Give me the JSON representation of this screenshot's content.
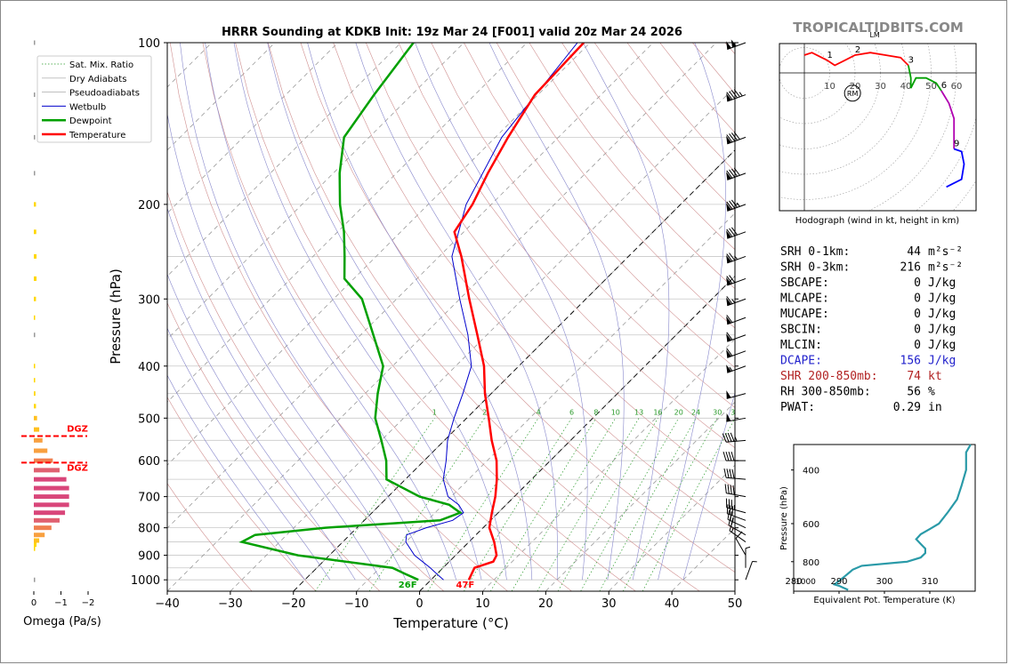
{
  "title": "HRRR Sounding at KDKB Init: 19z Mar 24 [F001] valid 20z Mar 24 2026",
  "watermark": "TROPICALTIDBITS.COM",
  "colors": {
    "temperature": "#ff0000",
    "dewpoint": "#00a000",
    "wetbulb": "#0000cc",
    "dcape": "#2222cc",
    "shear": "#b22222",
    "dgz": "#ff0000"
  },
  "chart_data": [
    {
      "name": "skew-t",
      "type": "line",
      "xlabel": "Temperature (°C)",
      "ylabel": "Pressure (hPa)",
      "xlim": [
        -40,
        50
      ],
      "ylim": [
        1050,
        100
      ],
      "y_scale": "log",
      "skew": "45-degree isotherms",
      "x_ticks": [
        "−40",
        "−30",
        "−20",
        "−10",
        "0",
        "10",
        "20",
        "30",
        "40",
        "50"
      ],
      "y_ticks": [
        "100",
        "200",
        "300",
        "400",
        "500",
        "600",
        "700",
        "800",
        "900",
        "1000"
      ],
      "legend": {
        "position": "upper-left",
        "entries": [
          "Sat. Mix. Ratio",
          "Dry Adiabats",
          "Pseudoadiabats",
          "Wetbulb",
          "Dewpoint",
          "Temperature"
        ]
      },
      "mix_ratio_labels": [
        "1",
        "2",
        "4",
        "6",
        "8",
        "10",
        "13",
        "16",
        "20",
        "24",
        "30",
        "36"
      ],
      "series": [
        {
          "name": "Temperature",
          "points": [
            [
              1000,
              6.0
            ],
            [
              975,
              5.5
            ],
            [
              950,
              5.0
            ],
            [
              925,
              7.0
            ],
            [
              900,
              6.5
            ],
            [
              850,
              4.0
            ],
            [
              800,
              1.0
            ],
            [
              750,
              -1.0
            ],
            [
              700,
              -3.0
            ],
            [
              650,
              -5.5
            ],
            [
              600,
              -8.5
            ],
            [
              550,
              -12.5
            ],
            [
              500,
              -16.5
            ],
            [
              450,
              -21.0
            ],
            [
              400,
              -25.5
            ],
            [
              350,
              -31.5
            ],
            [
              300,
              -38.5
            ],
            [
              250,
              -46.5
            ],
            [
              225,
              -51.5
            ],
            [
              200,
              -53.0
            ],
            [
              175,
              -55.5
            ],
            [
              150,
              -58.0
            ],
            [
              125,
              -60.5
            ],
            [
              100,
              -61.0
            ]
          ]
        },
        {
          "name": "Dewpoint",
          "points": [
            [
              1000,
              -2.0
            ],
            [
              975,
              -5.0
            ],
            [
              950,
              -8.0
            ],
            [
              900,
              -25.0
            ],
            [
              850,
              -36.0
            ],
            [
              825,
              -35.0
            ],
            [
              800,
              -25.0
            ],
            [
              775,
              -8.0
            ],
            [
              750,
              -6.0
            ],
            [
              725,
              -9.0
            ],
            [
              700,
              -15.0
            ],
            [
              650,
              -23.0
            ],
            [
              600,
              -26.0
            ],
            [
              550,
              -30.0
            ],
            [
              500,
              -34.5
            ],
            [
              450,
              -38.0
            ],
            [
              400,
              -41.5
            ],
            [
              350,
              -48.0
            ],
            [
              300,
              -55.5
            ],
            [
              275,
              -61.5
            ],
            [
              250,
              -65.0
            ],
            [
              225,
              -69.0
            ],
            [
              200,
              -74.0
            ],
            [
              175,
              -79.0
            ],
            [
              150,
              -84.0
            ],
            [
              125,
              -86.0
            ],
            [
              100,
              -88.0
            ]
          ]
        },
        {
          "name": "Wetbulb",
          "points": [
            [
              1000,
              2.0
            ],
            [
              975,
              0.0
            ],
            [
              950,
              -2.0
            ],
            [
              900,
              -6.5
            ],
            [
              850,
              -10.0
            ],
            [
              825,
              -11.0
            ],
            [
              800,
              -9.0
            ],
            [
              775,
              -6.0
            ],
            [
              750,
              -5.5
            ],
            [
              725,
              -7.5
            ],
            [
              700,
              -10.5
            ],
            [
              650,
              -14.0
            ],
            [
              600,
              -16.5
            ],
            [
              550,
              -19.5
            ],
            [
              500,
              -22.0
            ],
            [
              450,
              -24.5
            ],
            [
              400,
              -27.5
            ],
            [
              350,
              -33.0
            ],
            [
              300,
              -40.0
            ],
            [
              250,
              -48.0
            ],
            [
              200,
              -54.0
            ],
            [
              150,
              -59.0
            ],
            [
              100,
              -62.0
            ]
          ]
        }
      ],
      "annotations": [
        {
          "text": "26F",
          "series": "Dewpoint"
        },
        {
          "text": "47F",
          "series": "Temperature"
        }
      ]
    },
    {
      "name": "omega",
      "type": "bar",
      "xlabel": "Omega (Pa/s)",
      "xlim": [
        0,
        -2
      ],
      "x_ticks": [
        "0",
        "−1",
        "−2"
      ],
      "dgz_label": "DGZ",
      "dgz_layer_hpa": [
        540,
        605
      ],
      "bars": [
        {
          "p": 1000,
          "v": -0.03
        },
        {
          "p": 875,
          "v": -0.05
        },
        {
          "p": 860,
          "v": -0.1
        },
        {
          "p": 845,
          "v": -0.2
        },
        {
          "p": 825,
          "v": -0.4
        },
        {
          "p": 800,
          "v": -0.65
        },
        {
          "p": 775,
          "v": -0.95
        },
        {
          "p": 750,
          "v": -1.15
        },
        {
          "p": 725,
          "v": -1.3
        },
        {
          "p": 700,
          "v": -1.3
        },
        {
          "p": 675,
          "v": -1.3
        },
        {
          "p": 650,
          "v": -1.2
        },
        {
          "p": 625,
          "v": -0.95
        },
        {
          "p": 600,
          "v": -0.7
        },
        {
          "p": 575,
          "v": -0.5
        },
        {
          "p": 550,
          "v": -0.32
        },
        {
          "p": 525,
          "v": -0.2
        },
        {
          "p": 500,
          "v": -0.12
        },
        {
          "p": 475,
          "v": -0.08
        },
        {
          "p": 450,
          "v": -0.06
        },
        {
          "p": 425,
          "v": -0.05
        },
        {
          "p": 400,
          "v": -0.04
        },
        {
          "p": 350,
          "v": -0.02
        },
        {
          "p": 325,
          "v": -0.04
        },
        {
          "p": 300,
          "v": -0.08
        },
        {
          "p": 275,
          "v": -0.1
        },
        {
          "p": 250,
          "v": -0.1
        },
        {
          "p": 225,
          "v": -0.09
        },
        {
          "p": 200,
          "v": -0.08
        },
        {
          "p": 175,
          "v": -0.03
        },
        {
          "p": 150,
          "v": -0.02
        },
        {
          "p": 125,
          "v": -0.02
        },
        {
          "p": 100,
          "v": -0.02
        }
      ]
    },
    {
      "name": "hodograph",
      "type": "line",
      "xlabel": "Hodograph (wind in kt, height in km)",
      "ring_labels": [
        "10",
        "20",
        "30",
        "40",
        "50",
        "60"
      ],
      "markers": [
        "RM",
        "LM"
      ],
      "height_labels": [
        {
          "km": "1",
          "u": 9,
          "v": 5
        },
        {
          "km": "2",
          "u": 20,
          "v": 7
        },
        {
          "km": "3",
          "u": 41,
          "v": 3
        },
        {
          "km": "6",
          "u": 54,
          "v": -7
        },
        {
          "km": "9",
          "u": 59,
          "v": -30
        }
      ],
      "rm": {
        "u": 19,
        "v": -8
      },
      "lm": {
        "u": 28,
        "v": 15
      },
      "series": [
        {
          "color": "#ff0000",
          "points": [
            [
              0,
              7
            ],
            [
              3,
              8
            ],
            [
              9,
              5
            ],
            [
              12,
              3
            ],
            [
              16,
              5
            ],
            [
              20,
              7
            ],
            [
              26,
              8
            ],
            [
              32,
              7
            ],
            [
              38,
              6
            ],
            [
              41,
              3
            ]
          ]
        },
        {
          "color": "#00a000",
          "points": [
            [
              41,
              3
            ],
            [
              42,
              -2
            ],
            [
              42,
              -6
            ],
            [
              44,
              -2
            ],
            [
              48,
              -2
            ],
            [
              52,
              -4
            ],
            [
              54,
              -7
            ]
          ]
        },
        {
          "color": "#b000b0",
          "points": [
            [
              54,
              -7
            ],
            [
              57,
              -12
            ],
            [
              59,
              -18
            ],
            [
              59,
              -25
            ],
            [
              59,
              -30
            ]
          ]
        },
        {
          "color": "#0000ff",
          "points": [
            [
              59,
              -30
            ],
            [
              62,
              -31
            ],
            [
              63,
              -36
            ],
            [
              62,
              -42
            ],
            [
              56,
              -45
            ]
          ]
        }
      ]
    },
    {
      "name": "theta-e",
      "type": "line",
      "xlabel": "Equivalent Pot. Temperature (K)",
      "ylabel": "Pressure (hPa)",
      "xlim": [
        280,
        320
      ],
      "x_ticks": [
        "280",
        "290",
        "300",
        "310"
      ],
      "y_ticks": [
        "400",
        "600",
        "800"
      ],
      "bottom_label": "1000",
      "series": [
        {
          "name": "Theta-E",
          "color": "#2a9aa8",
          "points": [
            [
              990,
              292
            ],
            [
              975,
              291
            ],
            [
              960,
              290
            ],
            [
              950,
              289
            ],
            [
              925,
              290
            ],
            [
              900,
              291
            ],
            [
              875,
              292
            ],
            [
              850,
              293
            ],
            [
              825,
              295
            ],
            [
              800,
              305
            ],
            [
              775,
              308
            ],
            [
              750,
              309
            ],
            [
              725,
              309
            ],
            [
              700,
              308
            ],
            [
              675,
              307
            ],
            [
              650,
              308
            ],
            [
              625,
              310
            ],
            [
              600,
              312
            ],
            [
              575,
              313
            ],
            [
              550,
              314
            ],
            [
              500,
              316
            ],
            [
              450,
              317
            ],
            [
              400,
              318
            ],
            [
              375,
              318
            ],
            [
              350,
              318
            ],
            [
              330,
              319
            ]
          ]
        }
      ]
    }
  ],
  "barbs_note": "wind barbs",
  "stats": [
    {
      "label": "SRH 0-1km:",
      "value": "44",
      "unit": "m²s⁻²",
      "color": "#000000"
    },
    {
      "label": "SRH 0-3km:",
      "value": "216",
      "unit": "m²s⁻²",
      "color": "#000000"
    },
    {
      "label": "SBCAPE:",
      "value": "0",
      "unit": "J/kg",
      "color": "#000000"
    },
    {
      "label": "MLCAPE:",
      "value": "0",
      "unit": "J/kg",
      "color": "#000000"
    },
    {
      "label": "MUCAPE:",
      "value": "0",
      "unit": "J/kg",
      "color": "#000000"
    },
    {
      "label": "SBCIN:",
      "value": "0",
      "unit": "J/kg",
      "color": "#000000"
    },
    {
      "label": "MLCIN:",
      "value": "0",
      "unit": "J/kg",
      "color": "#000000"
    },
    {
      "label": "DCAPE:",
      "value": "156",
      "unit": "J/kg",
      "color": "#2222cc"
    },
    {
      "label": "SHR 200-850mb:",
      "value": "74",
      "unit": "kt",
      "color": "#b22222"
    },
    {
      "label": "RH 300-850mb:",
      "value": "56",
      "unit": "%",
      "color": "#000000"
    },
    {
      "label": "PWAT:",
      "value": "0.29",
      "unit": "in",
      "color": "#000000"
    }
  ],
  "barbs": [
    {
      "p": 100,
      "spd": 100,
      "dir": 250
    },
    {
      "p": 125,
      "spd": 95,
      "dir": 250
    },
    {
      "p": 150,
      "spd": 90,
      "dir": 250
    },
    {
      "p": 175,
      "spd": 90,
      "dir": 250
    },
    {
      "p": 200,
      "spd": 85,
      "dir": 250
    },
    {
      "p": 225,
      "spd": 80,
      "dir": 250
    },
    {
      "p": 250,
      "spd": 75,
      "dir": 250
    },
    {
      "p": 275,
      "spd": 70,
      "dir": 250
    },
    {
      "p": 300,
      "spd": 65,
      "dir": 250
    },
    {
      "p": 325,
      "spd": 60,
      "dir": 250
    },
    {
      "p": 350,
      "spd": 60,
      "dir": 250
    },
    {
      "p": 375,
      "spd": 60,
      "dir": 250
    },
    {
      "p": 400,
      "spd": 55,
      "dir": 250
    },
    {
      "p": 450,
      "spd": 50,
      "dir": 255
    },
    {
      "p": 500,
      "spd": 50,
      "dir": 260
    },
    {
      "p": 550,
      "spd": 45,
      "dir": 265
    },
    {
      "p": 600,
      "spd": 40,
      "dir": 270
    },
    {
      "p": 650,
      "spd": 40,
      "dir": 275
    },
    {
      "p": 700,
      "spd": 40,
      "dir": 280
    },
    {
      "p": 750,
      "spd": 35,
      "dir": 285
    },
    {
      "p": 775,
      "spd": 30,
      "dir": 290
    },
    {
      "p": 800,
      "spd": 25,
      "dir": 295
    },
    {
      "p": 825,
      "spd": 20,
      "dir": 300
    },
    {
      "p": 850,
      "spd": 15,
      "dir": 305
    },
    {
      "p": 900,
      "spd": 10,
      "dir": 330
    },
    {
      "p": 950,
      "spd": 8,
      "dir": 360
    },
    {
      "p": 1000,
      "spd": 5,
      "dir": 20
    }
  ]
}
